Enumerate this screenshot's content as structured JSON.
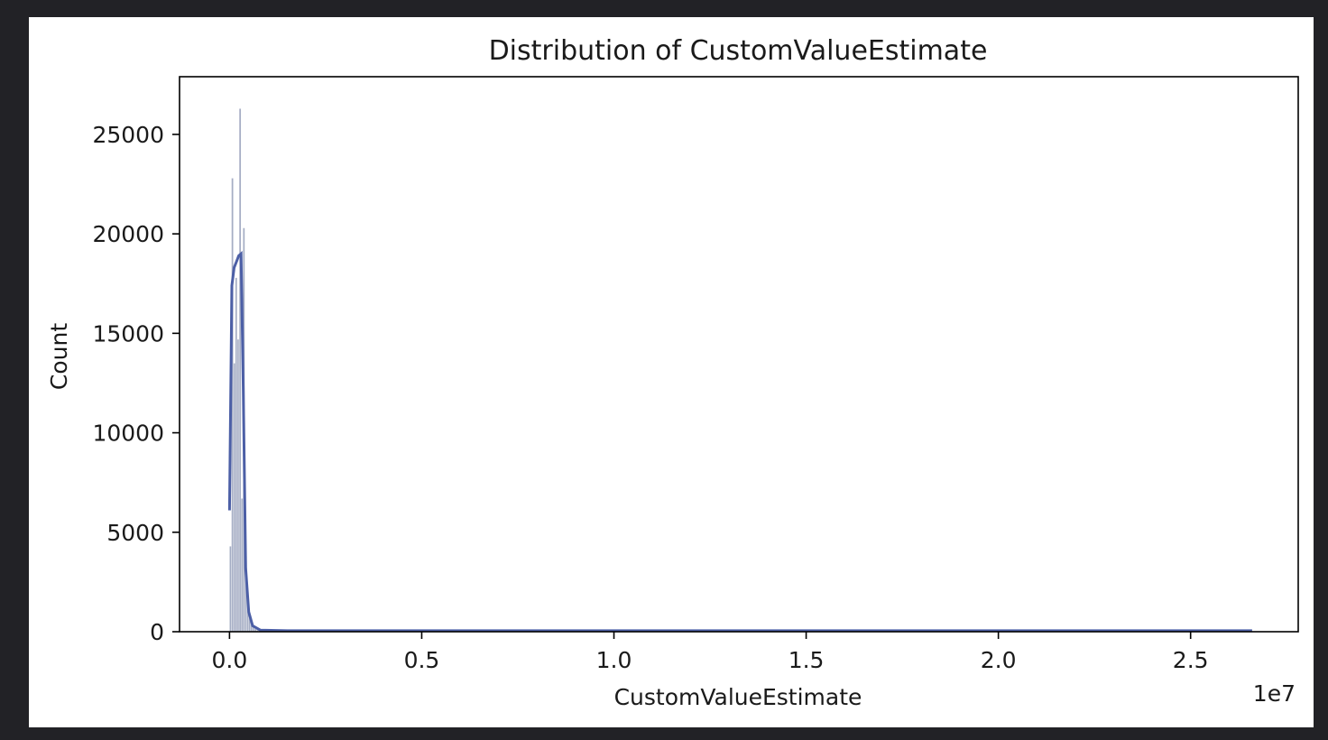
{
  "chart_data": {
    "type": "histogram",
    "title": "Distribution of CustomValueEstimate",
    "xlabel": "CustomValueEstimate",
    "ylabel": "Count",
    "x_offset_label": "1e7",
    "xlim": [
      -0.13,
      2.78
    ],
    "ylim": [
      0,
      27900
    ],
    "x_ticks": [
      0.0,
      0.5,
      1.0,
      1.5,
      2.0,
      2.5
    ],
    "x_tick_labels": [
      "0.0",
      "0.5",
      "1.0",
      "1.5",
      "2.0",
      "2.5"
    ],
    "y_ticks": [
      0,
      5000,
      10000,
      15000,
      20000,
      25000
    ],
    "y_tick_labels": [
      "0",
      "5000",
      "10000",
      "15000",
      "20000",
      "25000"
    ],
    "grid": false,
    "bar_color": "#8791b0",
    "kde_color": "#4c5fa6",
    "bins": [
      {
        "x": 0.0,
        "count": 4300
      },
      {
        "x": 0.005,
        "count": 22800
      },
      {
        "x": 0.01,
        "count": 13500
      },
      {
        "x": 0.015,
        "count": 17800
      },
      {
        "x": 0.02,
        "count": 14700
      },
      {
        "x": 0.025,
        "count": 26300
      },
      {
        "x": 0.03,
        "count": 6700
      },
      {
        "x": 0.035,
        "count": 20300
      },
      {
        "x": 0.04,
        "count": 3800
      },
      {
        "x": 0.045,
        "count": 1800
      },
      {
        "x": 0.05,
        "count": 900
      },
      {
        "x": 0.055,
        "count": 500
      },
      {
        "x": 0.06,
        "count": 250
      },
      {
        "x": 0.065,
        "count": 150
      },
      {
        "x": 0.07,
        "count": 80
      }
    ],
    "bin_width": 0.005,
    "kde": [
      [
        0.0,
        6100
      ],
      [
        0.006,
        17400
      ],
      [
        0.012,
        18300
      ],
      [
        0.018,
        18600
      ],
      [
        0.024,
        18900
      ],
      [
        0.03,
        19000
      ],
      [
        0.036,
        12000
      ],
      [
        0.042,
        3200
      ],
      [
        0.05,
        1000
      ],
      [
        0.06,
        300
      ],
      [
        0.08,
        80
      ],
      [
        0.15,
        50
      ],
      [
        0.5,
        50
      ],
      [
        1.0,
        50
      ],
      [
        1.5,
        50
      ],
      [
        2.0,
        50
      ],
      [
        2.5,
        50
      ],
      [
        2.66,
        50
      ]
    ]
  }
}
